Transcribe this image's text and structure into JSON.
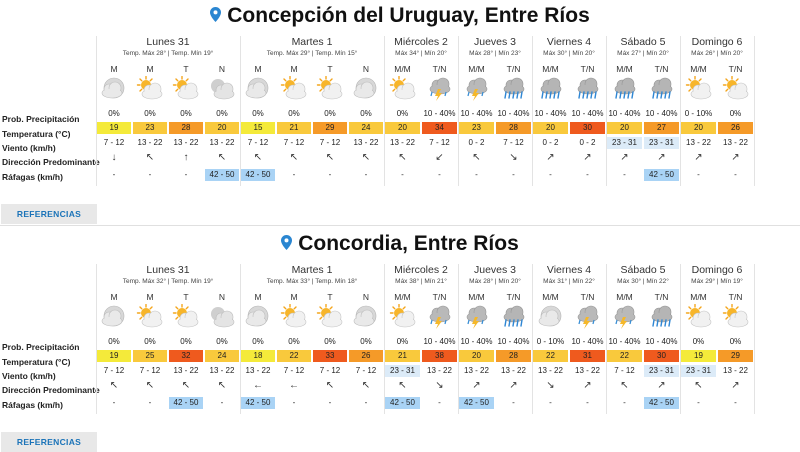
{
  "labels": {
    "precip": "Prob. Precipitación",
    "temp": "Temperatura (°C)",
    "wind": "Viento (km/h)",
    "dir": "Dirección Predominante",
    "gust": "Ráfagas (km/h)",
    "references": "REFERENCIAS"
  },
  "colors": {
    "yellow": "#f4ea3a",
    "lightorange": "#f9c93c",
    "orange": "#f59a28",
    "red": "#ef5a1e",
    "lightblue": "#a9d3f5",
    "paleblue": "#dcebf8"
  },
  "locations": [
    {
      "title": "Concepción del Uruguay, Entre Ríos",
      "days": [
        {
          "name": "Lunes 31",
          "sub": "Temp. Máx 28° | Temp. Mín 19°",
          "periods": [
            "M",
            "M",
            "T",
            "N"
          ],
          "icons": [
            "cloudy",
            "partly",
            "partly",
            "night-cloud"
          ],
          "precip": [
            "0%",
            "0%",
            "0%",
            "0%"
          ],
          "temp": [
            "19",
            "23",
            "28",
            "20"
          ],
          "tempc": [
            "yellow",
            "lightorange",
            "orange",
            "lightorange"
          ],
          "wind": [
            "7 - 12",
            "13 - 22",
            "13 - 22",
            "13 - 22"
          ],
          "windc": [
            "",
            "",
            "",
            ""
          ],
          "dir": [
            "↓",
            "↖",
            "↑",
            "↖"
          ],
          "gust": [
            "-",
            "-",
            "-",
            "42 - 50"
          ],
          "gustc": [
            "",
            "",
            "",
            "lightblue"
          ]
        },
        {
          "name": "Martes 1",
          "sub": "Temp. Máx 29° | Temp. Mín 15°",
          "periods": [
            "M",
            "M",
            "T",
            "N"
          ],
          "icons": [
            "cloudy",
            "partly",
            "partly",
            "cloudy"
          ],
          "precip": [
            "0%",
            "0%",
            "0%",
            "0%"
          ],
          "temp": [
            "15",
            "21",
            "29",
            "24"
          ],
          "tempc": [
            "yellow",
            "lightorange",
            "orange",
            "lightorange"
          ],
          "wind": [
            "7 - 12",
            "7 - 12",
            "7 - 12",
            "13 - 22"
          ],
          "windc": [
            "",
            "",
            "",
            ""
          ],
          "dir": [
            "↖",
            "↖",
            "↖",
            "↖"
          ],
          "gust": [
            "42 - 50",
            "-",
            "-",
            "-"
          ],
          "gustc": [
            "lightblue",
            "",
            "",
            ""
          ]
        },
        {
          "name": "Miércoles 2",
          "sub": "Máx 34° | Mín 20°",
          "periods": [
            "M/M",
            "T/N"
          ],
          "icons": [
            "partly",
            "storm"
          ],
          "precip": [
            "0%",
            "10 - 40%"
          ],
          "temp": [
            "20",
            "34"
          ],
          "tempc": [
            "lightorange",
            "red"
          ],
          "wind": [
            "13 - 22",
            "7 - 12"
          ],
          "windc": [
            "",
            ""
          ],
          "dir": [
            "↖",
            "↙"
          ],
          "gust": [
            "-",
            "-"
          ],
          "gustc": [
            "",
            ""
          ]
        },
        {
          "name": "Jueves 3",
          "sub": "Máx 28° | Mín 23°",
          "periods": [
            "M/M",
            "T/N"
          ],
          "icons": [
            "storm",
            "rain"
          ],
          "precip": [
            "10 - 40%",
            "10 - 40%"
          ],
          "temp": [
            "23",
            "28"
          ],
          "tempc": [
            "lightorange",
            "orange"
          ],
          "wind": [
            "0 - 2",
            "7 - 12"
          ],
          "windc": [
            "",
            ""
          ],
          "dir": [
            "↖",
            "↘"
          ],
          "gust": [
            "-",
            "-"
          ],
          "gustc": [
            "",
            ""
          ]
        },
        {
          "name": "Viernes 4",
          "sub": "Máx 30° | Mín 20°",
          "periods": [
            "M/M",
            "T/N"
          ],
          "icons": [
            "rain",
            "rain"
          ],
          "precip": [
            "10 - 40%",
            "10 - 40%"
          ],
          "temp": [
            "20",
            "30"
          ],
          "tempc": [
            "lightorange",
            "red"
          ],
          "wind": [
            "0 - 2",
            "0 - 2"
          ],
          "windc": [
            "",
            ""
          ],
          "dir": [
            "↗",
            "↗"
          ],
          "gust": [
            "-",
            "-"
          ],
          "gustc": [
            "",
            ""
          ]
        },
        {
          "name": "Sábado 5",
          "sub": "Máx 27° | Mín 20°",
          "periods": [
            "M/M",
            "T/N"
          ],
          "icons": [
            "rain",
            "rain"
          ],
          "precip": [
            "10 - 40%",
            "10 - 40%"
          ],
          "temp": [
            "20",
            "27"
          ],
          "tempc": [
            "lightorange",
            "orange"
          ],
          "wind": [
            "23 - 31",
            "23 - 31"
          ],
          "windc": [
            "paleblue",
            "paleblue"
          ],
          "dir": [
            "↗",
            "↗"
          ],
          "gust": [
            "-",
            "42 - 50"
          ],
          "gustc": [
            "",
            "lightblue"
          ]
        },
        {
          "name": "Domingo 6",
          "sub": "Máx 26° | Mín 20°",
          "periods": [
            "M/M",
            "T/N"
          ],
          "icons": [
            "partly",
            "partly"
          ],
          "precip": [
            "0 - 10%",
            "0%"
          ],
          "temp": [
            "20",
            "26"
          ],
          "tempc": [
            "lightorange",
            "orange"
          ],
          "wind": [
            "13 - 22",
            "13 - 22"
          ],
          "windc": [
            "",
            ""
          ],
          "dir": [
            "↗",
            "↗"
          ],
          "gust": [
            "-",
            "-"
          ],
          "gustc": [
            "",
            ""
          ]
        }
      ]
    },
    {
      "title": "Concordia, Entre Ríos",
      "days": [
        {
          "name": "Lunes 31",
          "sub": "Temp. Máx 32° | Temp. Mín 19°",
          "periods": [
            "M",
            "M",
            "T",
            "N"
          ],
          "icons": [
            "cloudy",
            "partly",
            "partly",
            "night-cloud"
          ],
          "precip": [
            "0%",
            "0%",
            "0%",
            "0%"
          ],
          "temp": [
            "19",
            "25",
            "32",
            "24"
          ],
          "tempc": [
            "yellow",
            "lightorange",
            "red",
            "lightorange"
          ],
          "wind": [
            "7 - 12",
            "7 - 12",
            "13 - 22",
            "13 - 22"
          ],
          "windc": [
            "",
            "",
            "",
            ""
          ],
          "dir": [
            "↖",
            "↖",
            "↖",
            "↖"
          ],
          "gust": [
            "-",
            "-",
            "42 - 50",
            "-"
          ],
          "gustc": [
            "",
            "",
            "lightblue",
            ""
          ]
        },
        {
          "name": "Martes 1",
          "sub": "Temp. Máx 33° | Temp. Mín 18°",
          "periods": [
            "M",
            "M",
            "T",
            "N"
          ],
          "icons": [
            "cloudy",
            "partly",
            "partly",
            "cloudy"
          ],
          "precip": [
            "0%",
            "0%",
            "0%",
            "0%"
          ],
          "temp": [
            "18",
            "22",
            "33",
            "26"
          ],
          "tempc": [
            "yellow",
            "lightorange",
            "red",
            "orange"
          ],
          "wind": [
            "13 - 22",
            "7 - 12",
            "7 - 12",
            "7 - 12"
          ],
          "windc": [
            "",
            "",
            "",
            ""
          ],
          "dir": [
            "←",
            "←",
            "↖",
            "↖"
          ],
          "gust": [
            "42 - 50",
            "-",
            "-",
            "-"
          ],
          "gustc": [
            "lightblue",
            "",
            "",
            ""
          ]
        },
        {
          "name": "Miércoles 2",
          "sub": "Máx 38° | Mín 21°",
          "periods": [
            "M/M",
            "T/N"
          ],
          "icons": [
            "partly",
            "storm"
          ],
          "precip": [
            "0%",
            "10 - 40%"
          ],
          "temp": [
            "21",
            "38"
          ],
          "tempc": [
            "lightorange",
            "red"
          ],
          "wind": [
            "23 - 31",
            "13 - 22"
          ],
          "windc": [
            "paleblue",
            ""
          ],
          "dir": [
            "↖",
            "↘"
          ],
          "gust": [
            "42 - 50",
            "-"
          ],
          "gustc": [
            "lightblue",
            ""
          ]
        },
        {
          "name": "Jueves 3",
          "sub": "Máx 28° | Mín 20°",
          "periods": [
            "M/M",
            "T/N"
          ],
          "icons": [
            "storm",
            "rain"
          ],
          "precip": [
            "10 - 40%",
            "10 - 40%"
          ],
          "temp": [
            "20",
            "28"
          ],
          "tempc": [
            "lightorange",
            "orange"
          ],
          "wind": [
            "13 - 22",
            "13 - 22"
          ],
          "windc": [
            "",
            ""
          ],
          "dir": [
            "↗",
            "↗"
          ],
          "gust": [
            "42 - 50",
            "-"
          ],
          "gustc": [
            "lightblue",
            ""
          ]
        },
        {
          "name": "Viernes 4",
          "sub": "Máx 31° | Mín 22°",
          "periods": [
            "M/M",
            "T/N"
          ],
          "icons": [
            "cloudy",
            "storm"
          ],
          "precip": [
            "0 - 10%",
            "10 - 40%"
          ],
          "temp": [
            "22",
            "31"
          ],
          "tempc": [
            "lightorange",
            "red"
          ],
          "wind": [
            "13 - 22",
            "13 - 22"
          ],
          "windc": [
            "",
            ""
          ],
          "dir": [
            "↘",
            "↗"
          ],
          "gust": [
            "-",
            "-"
          ],
          "gustc": [
            "",
            ""
          ]
        },
        {
          "name": "Sábado 5",
          "sub": "Máx 30° | Mín 22°",
          "periods": [
            "M/M",
            "T/N"
          ],
          "icons": [
            "storm",
            "rain"
          ],
          "precip": [
            "10 - 40%",
            "10 - 40%"
          ],
          "temp": [
            "22",
            "30"
          ],
          "tempc": [
            "lightorange",
            "red"
          ],
          "wind": [
            "7 - 12",
            "23 - 31"
          ],
          "windc": [
            "",
            "paleblue"
          ],
          "dir": [
            "↖",
            "↗"
          ],
          "gust": [
            "-",
            "42 - 50"
          ],
          "gustc": [
            "",
            "lightblue"
          ]
        },
        {
          "name": "Domingo 6",
          "sub": "Máx 29° | Mín 19°",
          "periods": [
            "M/M",
            "T/N"
          ],
          "icons": [
            "partly",
            "partly"
          ],
          "precip": [
            "0%",
            "0%"
          ],
          "temp": [
            "19",
            "29"
          ],
          "tempc": [
            "yellow",
            "orange"
          ],
          "wind": [
            "23 - 31",
            "13 - 22"
          ],
          "windc": [
            "paleblue",
            ""
          ],
          "dir": [
            "↖",
            "↗"
          ],
          "gust": [
            "-",
            "-"
          ],
          "gustc": [
            "",
            ""
          ]
        }
      ]
    }
  ]
}
